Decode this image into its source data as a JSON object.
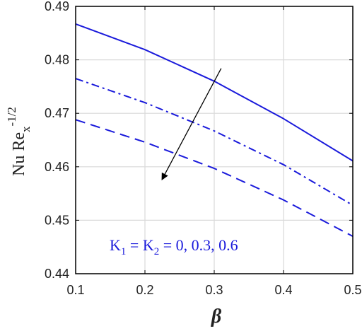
{
  "chart_data": {
    "type": "line",
    "xlabel": "β",
    "ylabel": {
      "main": "Nu Re",
      "sub": "x",
      "sup": "-1/2"
    },
    "xlim": [
      0.1,
      0.5
    ],
    "ylim": [
      0.44,
      0.49
    ],
    "xticks": [
      "0.1",
      "0.2",
      "0.3",
      "0.4",
      "0.5"
    ],
    "yticks": [
      "0.44",
      "0.45",
      "0.46",
      "0.47",
      "0.48",
      "0.49"
    ],
    "grid": true,
    "line_color": "#1a1adb",
    "series": [
      {
        "style": "solid",
        "x": [
          0.1,
          0.2,
          0.3,
          0.4,
          0.5
        ],
        "y": [
          0.4867,
          0.4819,
          0.476,
          0.469,
          0.4611
        ]
      },
      {
        "style": "dashdot",
        "x": [
          0.1,
          0.2,
          0.3,
          0.4,
          0.5
        ],
        "y": [
          0.4765,
          0.472,
          0.4667,
          0.4604,
          0.4528
        ]
      },
      {
        "style": "dashed",
        "x": [
          0.1,
          0.2,
          0.3,
          0.4,
          0.5
        ],
        "y": [
          0.4688,
          0.4646,
          0.4597,
          0.4538,
          0.447
        ]
      }
    ],
    "annotation": {
      "K1": "K",
      "K1_sub": "1",
      "eq": " = ",
      "K2": "K",
      "K2_sub": "2",
      "values": " = 0, 0.3, 0.6"
    },
    "arrow": {
      "from": [
        0.31,
        0.4784
      ],
      "to": [
        0.225,
        0.4577
      ]
    }
  }
}
